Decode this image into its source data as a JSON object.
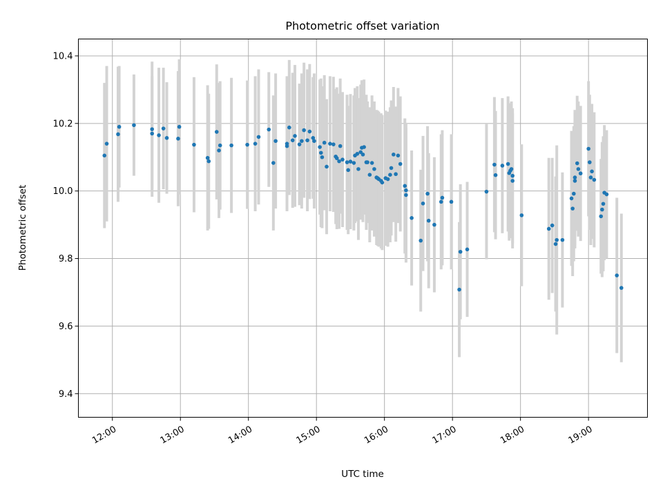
{
  "chart_data": {
    "type": "scatter",
    "title": "Photometric offset variation",
    "xlabel": "UTC time",
    "ylabel": "Photometric offset",
    "xlim": [
      "11:30",
      "19:52"
    ],
    "ylim": [
      9.33,
      10.45
    ],
    "x_ticks": [
      "12:00",
      "13:00",
      "14:00",
      "15:00",
      "16:00",
      "17:00",
      "18:00",
      "19:00"
    ],
    "y_ticks": [
      9.4,
      9.6,
      9.8,
      10.0,
      10.2,
      10.4
    ],
    "grid": true,
    "colors": {
      "point": "#1f77b4",
      "error_bar": "#d3d3d3",
      "grid": "#b0b0b0"
    },
    "points": [
      {
        "x": "11:53",
        "y": 10.105,
        "err": 0.215
      },
      {
        "x": "11:55",
        "y": 10.14,
        "err": 0.23
      },
      {
        "x": "12:05",
        "y": 10.168,
        "err": 0.2
      },
      {
        "x": "12:06",
        "y": 10.19,
        "err": 0.18
      },
      {
        "x": "12:19",
        "y": 10.195,
        "err": 0.15
      },
      {
        "x": "12:35",
        "y": 10.183,
        "err": 0.2
      },
      {
        "x": "12:35",
        "y": 10.17,
        "err": 0.17
      },
      {
        "x": "12:41",
        "y": 10.165,
        "err": 0.2
      },
      {
        "x": "12:45",
        "y": 10.185,
        "err": 0.18
      },
      {
        "x": "12:48",
        "y": 10.157,
        "err": 0.165
      },
      {
        "x": "12:58",
        "y": 10.155,
        "err": 0.2
      },
      {
        "x": "12:59",
        "y": 10.19,
        "err": 0.2
      },
      {
        "x": "13:12",
        "y": 10.137,
        "err": 0.2
      },
      {
        "x": "13:24",
        "y": 10.098,
        "err": 0.215
      },
      {
        "x": "13:25",
        "y": 10.088,
        "err": 0.2
      },
      {
        "x": "13:32",
        "y": 10.175,
        "err": 0.2
      },
      {
        "x": "13:34",
        "y": 10.12,
        "err": 0.2
      },
      {
        "x": "13:35",
        "y": 10.135,
        "err": 0.19
      },
      {
        "x": "13:45",
        "y": 10.135,
        "err": 0.2
      },
      {
        "x": "13:59",
        "y": 10.137,
        "err": 0.19
      },
      {
        "x": "14:06",
        "y": 10.14,
        "err": 0.2
      },
      {
        "x": "14:09",
        "y": 10.16,
        "err": 0.2
      },
      {
        "x": "14:18",
        "y": 10.182,
        "err": 0.17
      },
      {
        "x": "14:22",
        "y": 10.083,
        "err": 0.2
      },
      {
        "x": "14:24",
        "y": 10.148,
        "err": 0.2
      },
      {
        "x": "14:34",
        "y": 10.14,
        "err": 0.2
      },
      {
        "x": "14:34",
        "y": 10.133,
        "err": 0.15
      },
      {
        "x": "14:36",
        "y": 10.188,
        "err": 0.2
      },
      {
        "x": "14:39",
        "y": 10.15,
        "err": 0.2
      },
      {
        "x": "14:41",
        "y": 10.163,
        "err": 0.21
      },
      {
        "x": "14:45",
        "y": 10.138,
        "err": 0.18
      },
      {
        "x": "14:47",
        "y": 10.148,
        "err": 0.2
      },
      {
        "x": "14:49",
        "y": 10.18,
        "err": 0.2
      },
      {
        "x": "14:52",
        "y": 10.15,
        "err": 0.21
      },
      {
        "x": "14:54",
        "y": 10.176,
        "err": 0.2
      },
      {
        "x": "14:57",
        "y": 10.157,
        "err": 0.18
      },
      {
        "x": "14:58",
        "y": 10.148,
        "err": 0.2
      },
      {
        "x": "15:03",
        "y": 10.13,
        "err": 0.2
      },
      {
        "x": "15:04",
        "y": 10.113,
        "err": 0.22
      },
      {
        "x": "15:05",
        "y": 10.1,
        "err": 0.21
      },
      {
        "x": "15:07",
        "y": 10.143,
        "err": 0.2
      },
      {
        "x": "15:09",
        "y": 10.072,
        "err": 0.2
      },
      {
        "x": "15:12",
        "y": 10.14,
        "err": 0.2
      },
      {
        "x": "15:15",
        "y": 10.138,
        "err": 0.2
      },
      {
        "x": "15:17",
        "y": 10.102,
        "err": 0.2
      },
      {
        "x": "15:18",
        "y": 10.097,
        "err": 0.21
      },
      {
        "x": "15:20",
        "y": 10.088,
        "err": 0.2
      },
      {
        "x": "15:21",
        "y": 10.133,
        "err": 0.2
      },
      {
        "x": "15:23",
        "y": 10.093,
        "err": 0.2
      },
      {
        "x": "15:27",
        "y": 10.085,
        "err": 0.2
      },
      {
        "x": "15:28",
        "y": 10.062,
        "err": 0.19
      },
      {
        "x": "15:30",
        "y": 10.087,
        "err": 0.2
      },
      {
        "x": "15:33",
        "y": 10.083,
        "err": 0.2
      },
      {
        "x": "15:34",
        "y": 10.105,
        "err": 0.2
      },
      {
        "x": "15:36",
        "y": 10.11,
        "err": 0.2
      },
      {
        "x": "15:37",
        "y": 10.065,
        "err": 0.21
      },
      {
        "x": "15:39",
        "y": 10.115,
        "err": 0.2
      },
      {
        "x": "15:40",
        "y": 10.128,
        "err": 0.2
      },
      {
        "x": "15:41",
        "y": 10.108,
        "err": 0.2
      },
      {
        "x": "15:42",
        "y": 10.13,
        "err": 0.2
      },
      {
        "x": "15:44",
        "y": 10.085,
        "err": 0.2
      },
      {
        "x": "15:45",
        "y": 10.085,
        "err": 0.18
      },
      {
        "x": "15:47",
        "y": 10.048,
        "err": 0.2
      },
      {
        "x": "15:49",
        "y": 10.083,
        "err": 0.2
      },
      {
        "x": "15:51",
        "y": 10.065,
        "err": 0.2
      },
      {
        "x": "15:53",
        "y": 10.04,
        "err": 0.2
      },
      {
        "x": "15:54",
        "y": 10.038,
        "err": 0.2
      },
      {
        "x": "15:55",
        "y": 10.035,
        "err": 0.2
      },
      {
        "x": "15:57",
        "y": 10.03,
        "err": 0.2
      },
      {
        "x": "15:58",
        "y": 10.025,
        "err": 0.2
      },
      {
        "x": "16:01",
        "y": 10.038,
        "err": 0.2
      },
      {
        "x": "16:03",
        "y": 10.035,
        "err": 0.2
      },
      {
        "x": "16:05",
        "y": 10.048,
        "err": 0.2
      },
      {
        "x": "16:06",
        "y": 10.068,
        "err": 0.2
      },
      {
        "x": "16:08",
        "y": 10.108,
        "err": 0.2
      },
      {
        "x": "16:10",
        "y": 10.05,
        "err": 0.2
      },
      {
        "x": "16:12",
        "y": 10.105,
        "err": 0.2
      },
      {
        "x": "16:14",
        "y": 10.08,
        "err": 0.2
      },
      {
        "x": "16:18",
        "y": 10.015,
        "err": 0.2
      },
      {
        "x": "16:19",
        "y": 10.002,
        "err": 0.2
      },
      {
        "x": "16:19",
        "y": 9.988,
        "err": 0.2
      },
      {
        "x": "16:24",
        "y": 9.92,
        "err": 0.2
      },
      {
        "x": "16:32",
        "y": 9.853,
        "err": 0.21
      },
      {
        "x": "16:34",
        "y": 9.963,
        "err": 0.2
      },
      {
        "x": "16:38",
        "y": 9.992,
        "err": 0.2
      },
      {
        "x": "16:39",
        "y": 9.912,
        "err": 0.2
      },
      {
        "x": "16:44",
        "y": 9.9,
        "err": 0.2
      },
      {
        "x": "16:50",
        "y": 9.968,
        "err": 0.2
      },
      {
        "x": "16:51",
        "y": 9.98,
        "err": 0.2
      },
      {
        "x": "16:59",
        "y": 9.968,
        "err": 0.2
      },
      {
        "x": "17:06",
        "y": 9.708,
        "err": 0.2
      },
      {
        "x": "17:07",
        "y": 9.82,
        "err": 0.2
      },
      {
        "x": "17:13",
        "y": 9.827,
        "err": 0.2
      },
      {
        "x": "17:30",
        "y": 9.998,
        "err": 0.2
      },
      {
        "x": "17:37",
        "y": 10.078,
        "err": 0.2
      },
      {
        "x": "17:38",
        "y": 10.047,
        "err": 0.19
      },
      {
        "x": "17:44",
        "y": 10.075,
        "err": 0.2
      },
      {
        "x": "17:49",
        "y": 10.08,
        "err": 0.2
      },
      {
        "x": "17:50",
        "y": 10.053,
        "err": 0.2
      },
      {
        "x": "17:51",
        "y": 10.06,
        "err": 0.2
      },
      {
        "x": "17:52",
        "y": 10.065,
        "err": 0.2
      },
      {
        "x": "17:53",
        "y": 10.045,
        "err": 0.2
      },
      {
        "x": "17:53",
        "y": 10.03,
        "err": 0.2
      },
      {
        "x": "18:01",
        "y": 9.928,
        "err": 0.21
      },
      {
        "x": "18:25",
        "y": 9.888,
        "err": 0.21
      },
      {
        "x": "18:28",
        "y": 9.898,
        "err": 0.2
      },
      {
        "x": "18:31",
        "y": 9.843,
        "err": 0.2
      },
      {
        "x": "18:32",
        "y": 9.855,
        "err": 0.28
      },
      {
        "x": "18:37",
        "y": 9.855,
        "err": 0.2
      },
      {
        "x": "18:45",
        "y": 9.978,
        "err": 0.2
      },
      {
        "x": "18:46",
        "y": 9.948,
        "err": 0.2
      },
      {
        "x": "18:47",
        "y": 9.992,
        "err": 0.2
      },
      {
        "x": "18:48",
        "y": 10.04,
        "err": 0.2
      },
      {
        "x": "18:48",
        "y": 10.03,
        "err": 0.2
      },
      {
        "x": "18:50",
        "y": 10.082,
        "err": 0.2
      },
      {
        "x": "18:51",
        "y": 10.065,
        "err": 0.2
      },
      {
        "x": "18:53",
        "y": 10.052,
        "err": 0.2
      },
      {
        "x": "19:00",
        "y": 10.125,
        "err": 0.2
      },
      {
        "x": "19:01",
        "y": 10.085,
        "err": 0.2
      },
      {
        "x": "19:02",
        "y": 10.04,
        "err": 0.2
      },
      {
        "x": "19:03",
        "y": 10.058,
        "err": 0.2
      },
      {
        "x": "19:05",
        "y": 10.033,
        "err": 0.2
      },
      {
        "x": "19:11",
        "y": 9.925,
        "err": 0.17
      },
      {
        "x": "19:12",
        "y": 9.945,
        "err": 0.2
      },
      {
        "x": "19:13",
        "y": 9.962,
        "err": 0.2
      },
      {
        "x": "19:14",
        "y": 9.995,
        "err": 0.2
      },
      {
        "x": "19:16",
        "y": 9.99,
        "err": 0.19
      },
      {
        "x": "19:25",
        "y": 9.75,
        "err": 0.23
      },
      {
        "x": "19:29",
        "y": 9.713,
        "err": 0.22
      }
    ]
  }
}
